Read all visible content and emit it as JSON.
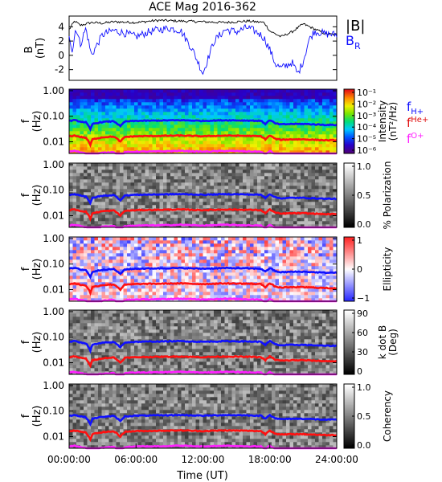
{
  "title": "ACE Mag 2016-362",
  "colors": {
    "b_total": "#000000",
    "b_r": "#1010ff",
    "f_h": "#1010ff",
    "f_he": "#ff1010",
    "f_o": "#ff20ff"
  },
  "chart_data": [
    {
      "type": "line",
      "panel": "magnetic-field",
      "ylabel": "B",
      "yunit": "(nT)",
      "yticks": [
        "4",
        "2",
        "0",
        "-2"
      ],
      "ylim": [
        -3.5,
        5.5
      ],
      "x_range_hours": [
        0,
        24
      ],
      "legend": [
        "|B|",
        "B",
        "R"
      ],
      "series": [
        {
          "name": "|B|",
          "x": [
            0,
            0.5,
            1,
            2,
            3,
            4,
            6,
            8,
            10,
            12,
            14,
            16,
            17.5,
            18,
            19,
            20,
            21,
            22,
            23,
            24
          ],
          "y": [
            3.6,
            4.8,
            4.2,
            4.6,
            4.5,
            4.7,
            4.6,
            4.9,
            4.8,
            4.7,
            4.6,
            4.8,
            4.6,
            3.4,
            2.6,
            3.3,
            4.4,
            3.7,
            3.0,
            2.9
          ]
        },
        {
          "name": "B_R",
          "x": [
            0,
            0.3,
            0.6,
            1,
            1.5,
            2,
            3,
            4,
            5,
            6,
            7,
            8,
            9,
            10,
            11,
            12,
            13,
            14,
            15,
            16,
            17,
            17.5,
            18,
            18.5,
            19,
            19.5,
            20,
            20.5,
            21,
            21.5,
            22,
            23,
            24
          ],
          "y": [
            3.0,
            0.5,
            4.0,
            1.5,
            3.8,
            0.0,
            2.9,
            3.5,
            3.1,
            2.6,
            3.2,
            3.6,
            3.8,
            3.5,
            1.0,
            -2.5,
            2.0,
            3.6,
            3.3,
            3.9,
            3.1,
            2.4,
            0.8,
            -1.2,
            -1.8,
            -1.4,
            -1.0,
            -2.6,
            -0.8,
            2.1,
            3.4,
            3.0,
            2.9
          ]
        }
      ]
    },
    {
      "type": "heatmap",
      "panel": "intensity",
      "ylabel": "f",
      "yunit": "(Hz)",
      "yticks": [
        "1.00",
        "0.10",
        "0.01"
      ],
      "colorbar": {
        "label": "Intensity",
        "unit": "(nT²/Hz)",
        "ticks": [
          "10⁻¹",
          "10⁻²",
          "10⁻³",
          "10⁻⁴",
          "10⁻⁵",
          "10⁻⁶"
        ],
        "scheme": "rainbow"
      },
      "legend": [
        "f",
        "H+",
        "f",
        "He+",
        "f",
        "O+"
      ]
    },
    {
      "type": "heatmap",
      "panel": "polarization",
      "ylabel": "f",
      "yunit": "(Hz)",
      "yticks": [
        "1.00",
        "0.10",
        "0.01"
      ],
      "colorbar": {
        "label": "% Polarization",
        "ticks": [
          "1.0",
          "0.5",
          "0.0"
        ],
        "scheme": "gray"
      }
    },
    {
      "type": "heatmap",
      "panel": "ellipticity",
      "ylabel": "f",
      "yunit": "(Hz)",
      "yticks": [
        "1.00",
        "0.10",
        "0.01"
      ],
      "colorbar": {
        "label": "Ellipticity",
        "ticks": [
          "1",
          "0",
          "−1"
        ],
        "scheme": "bwr"
      }
    },
    {
      "type": "heatmap",
      "panel": "k-dot-b",
      "ylabel": "f",
      "yunit": "(Hz)",
      "yticks": [
        "1.00",
        "0.10",
        "0.01"
      ],
      "colorbar": {
        "label": "k dot B",
        "unit": "(Deg)",
        "ticks": [
          "90",
          "60",
          "30",
          "0"
        ],
        "scheme": "gray"
      }
    },
    {
      "type": "heatmap",
      "panel": "coherency",
      "ylabel": "f",
      "yunit": "(Hz)",
      "yticks": [
        "1.00",
        "0.10",
        "0.01"
      ],
      "colorbar": {
        "label": "Coherency",
        "ticks": [
          "1.0",
          "0.5",
          "0.0"
        ],
        "scheme": "gray"
      }
    }
  ],
  "gyrofrequencies": {
    "x": [
      0,
      0.5,
      1,
      1.5,
      1.9,
      2.1,
      3,
      4,
      4.6,
      5,
      6,
      8,
      10,
      12,
      14,
      16,
      17.2,
      17.6,
      18,
      18.5,
      19,
      20,
      21,
      22,
      23,
      24
    ],
    "f_h": [
      0.066,
      0.07,
      0.062,
      0.058,
      0.03,
      0.05,
      0.06,
      0.064,
      0.04,
      0.062,
      0.066,
      0.068,
      0.07,
      0.066,
      0.07,
      0.068,
      0.066,
      0.05,
      0.07,
      0.052,
      0.048,
      0.05,
      0.05,
      0.048,
      0.046,
      0.046
    ],
    "f_he": [
      0.0165,
      0.0175,
      0.0155,
      0.0145,
      0.0075,
      0.0125,
      0.015,
      0.016,
      0.01,
      0.0155,
      0.0165,
      0.017,
      0.0175,
      0.0165,
      0.0175,
      0.017,
      0.0165,
      0.0125,
      0.0175,
      0.013,
      0.012,
      0.0125,
      0.0125,
      0.012,
      0.0115,
      0.0115
    ],
    "f_o": [
      0.0041,
      0.0044,
      0.0039,
      0.0036,
      0.0019,
      0.0031,
      0.0037,
      0.004,
      0.0025,
      0.0039,
      0.0041,
      0.0042,
      0.0044,
      0.0041,
      0.0044,
      0.0042,
      0.0041,
      0.0031,
      0.0044,
      0.0032,
      0.003,
      0.0031,
      0.0031,
      0.003,
      0.0029,
      0.0029
    ]
  },
  "x_axis": {
    "label": "Time (UT)",
    "ticks": [
      "00:00:00",
      "06:00:00",
      "12:00:00",
      "18:00:00",
      "24:00:00"
    ],
    "tick_hours": [
      0,
      6,
      12,
      18,
      24
    ]
  }
}
